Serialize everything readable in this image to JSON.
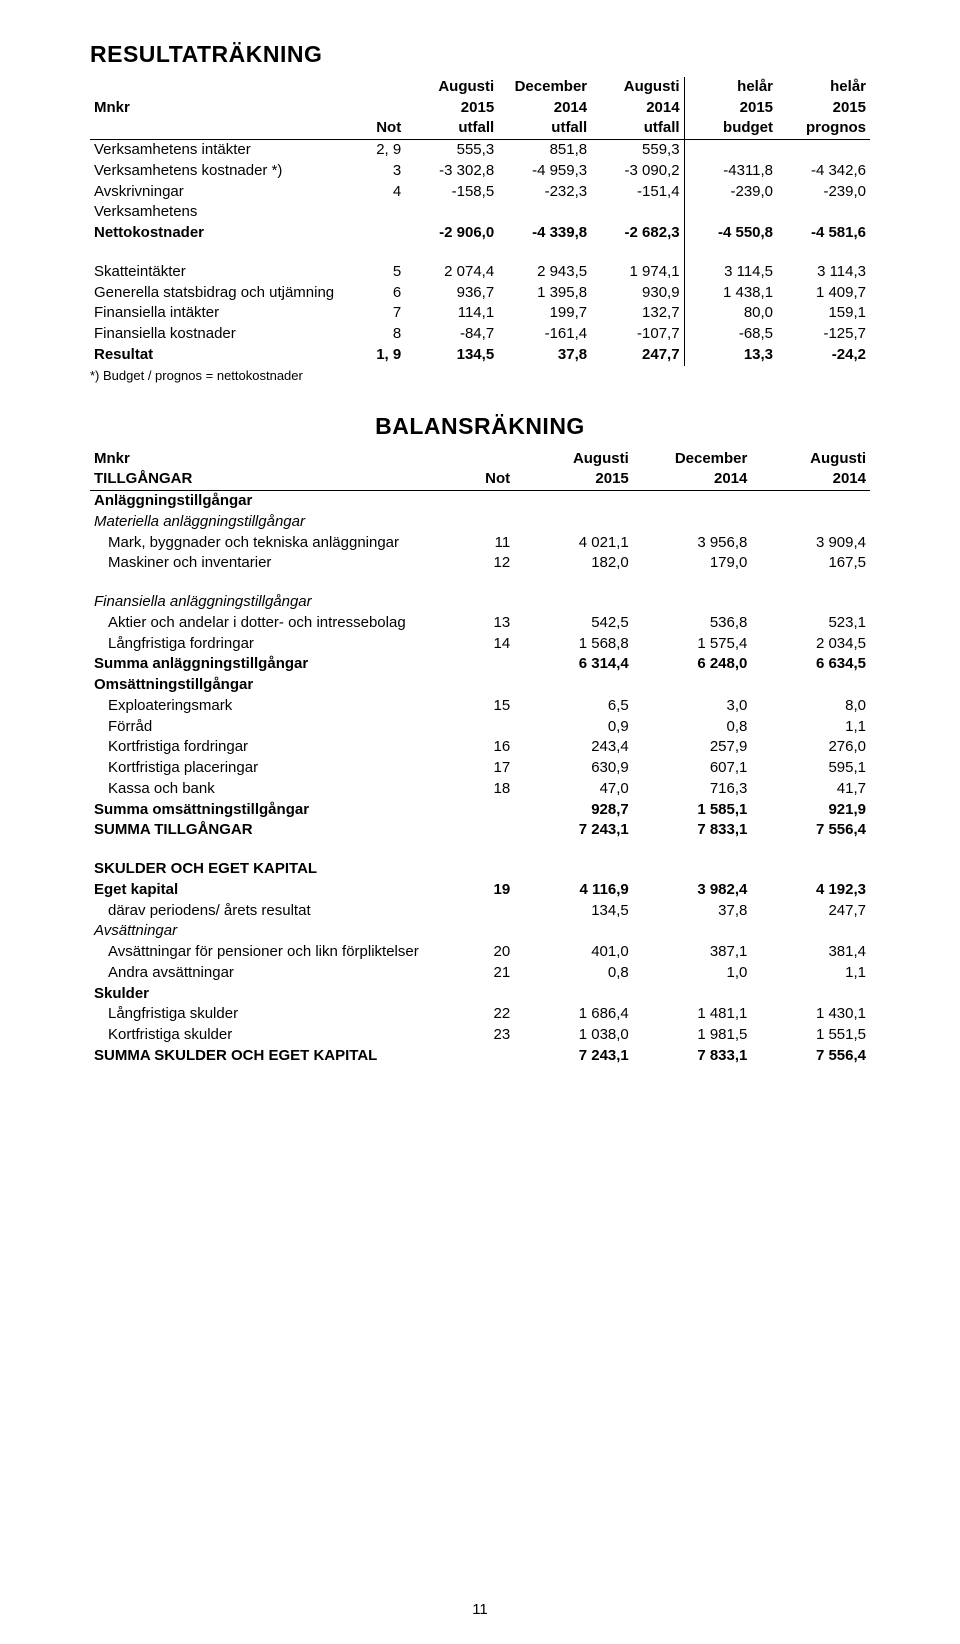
{
  "page_number": "11",
  "result": {
    "title": "RESULTATRÄKNING",
    "header_row1": [
      "",
      "",
      "Augusti",
      "December",
      "Augusti",
      "helår",
      "helår"
    ],
    "header_row2": [
      "Mnkr",
      "",
      "2015",
      "2014",
      "2014",
      "2015",
      "2015"
    ],
    "header_row3": [
      "",
      "Not",
      "utfall",
      "utfall",
      "utfall",
      "budget",
      "prognos"
    ],
    "rows_block1": [
      {
        "label": "Verksamhetens intäkter",
        "note": "2, 9",
        "v": [
          "555,3",
          "851,8",
          "559,3",
          "",
          ""
        ]
      },
      {
        "label": "Verksamhetens kostnader *)",
        "note": "3",
        "v": [
          "-3 302,8",
          "-4 959,3",
          "-3 090,2",
          "-4311,8",
          "-4 342,6"
        ]
      },
      {
        "label": "Avskrivningar",
        "note": "4",
        "v": [
          "-158,5",
          "-232,3",
          "-151,4",
          "-239,0",
          "-239,0"
        ]
      },
      {
        "label": "Verksamhetens",
        "note": "",
        "v": [
          "",
          "",
          "",
          "",
          ""
        ]
      },
      {
        "label": "Nettokostnader",
        "note": "",
        "v": [
          "-2 906,0",
          "-4 339,8",
          "-2 682,3",
          "-4 550,8",
          "-4 581,6"
        ],
        "bold": true
      }
    ],
    "rows_block2": [
      {
        "label": "Skatteintäkter",
        "note": "5",
        "v": [
          "2 074,4",
          "2 943,5",
          "1 974,1",
          "3 114,5",
          "3 114,3"
        ]
      },
      {
        "label": "Generella statsbidrag och utjämning",
        "note": "6",
        "v": [
          "936,7",
          "1 395,8",
          "930,9",
          "1 438,1",
          "1 409,7"
        ]
      },
      {
        "label": "Finansiella intäkter",
        "note": "7",
        "v": [
          "114,1",
          "199,7",
          "132,7",
          "80,0",
          "159,1"
        ]
      },
      {
        "label": "Finansiella kostnader",
        "note": "8",
        "v": [
          "-84,7",
          "-161,4",
          "-107,7",
          "-68,5",
          "-125,7"
        ]
      },
      {
        "label": "Resultat",
        "note": "1, 9",
        "v": [
          "134,5",
          "37,8",
          "247,7",
          "13,3",
          "-24,2"
        ],
        "bold": true
      }
    ],
    "footnote": "*) Budget / prognos = nettokostnader"
  },
  "balance": {
    "title": "BALANSRÄKNING",
    "header_row1": [
      "Mnkr",
      "",
      "Augusti",
      "December",
      "Augusti"
    ],
    "header_row2": [
      "TILLGÅNGAR",
      "Not",
      "2015",
      "2014",
      "2014"
    ],
    "rows": [
      {
        "label": "Anläggningstillgångar",
        "note": "",
        "v": [
          "",
          "",
          ""
        ],
        "bold": true
      },
      {
        "label": "Materiella anläggningstillgångar",
        "note": "",
        "v": [
          "",
          "",
          ""
        ],
        "italic": true
      },
      {
        "label": "Mark, byggnader och tekniska anläggningar",
        "note": "11",
        "v": [
          "4 021,1",
          "3 956,8",
          "3 909,4"
        ],
        "indent": true
      },
      {
        "label": "Maskiner och inventarier",
        "note": "12",
        "v": [
          "182,0",
          "179,0",
          "167,5"
        ],
        "indent": true
      },
      {
        "spacer": true
      },
      {
        "label": "Finansiella anläggningstillgångar",
        "note": "",
        "v": [
          "",
          "",
          ""
        ],
        "italic": true
      },
      {
        "label": "Aktier och andelar i dotter- och intressebolag",
        "note": "13",
        "v": [
          "542,5",
          "536,8",
          "523,1"
        ],
        "indent": true
      },
      {
        "label": "Långfristiga fordringar",
        "note": "14",
        "v": [
          "1 568,8",
          "1 575,4",
          "2 034,5"
        ],
        "indent": true
      },
      {
        "label": "Summa anläggningstillgångar",
        "note": "",
        "v": [
          "6 314,4",
          "6 248,0",
          "6 634,5"
        ],
        "bold": true
      },
      {
        "label": "Omsättningstillgångar",
        "note": "",
        "v": [
          "",
          "",
          ""
        ],
        "bold": true
      },
      {
        "label": "Exploateringsmark",
        "note": "15",
        "v": [
          "6,5",
          "3,0",
          "8,0"
        ],
        "indent": true
      },
      {
        "label": "Förråd",
        "note": "",
        "v": [
          "0,9",
          "0,8",
          "1,1"
        ],
        "indent": true
      },
      {
        "label": "Kortfristiga fordringar",
        "note": "16",
        "v": [
          "243,4",
          "257,9",
          "276,0"
        ],
        "indent": true
      },
      {
        "label": "Kortfristiga placeringar",
        "note": "17",
        "v": [
          "630,9",
          "607,1",
          "595,1"
        ],
        "indent": true
      },
      {
        "label": "Kassa och bank",
        "note": "18",
        "v": [
          "47,0",
          "716,3",
          "41,7"
        ],
        "indent": true
      },
      {
        "label": "Summa omsättningstillgångar",
        "note": "",
        "v": [
          "928,7",
          "1 585,1",
          "921,9"
        ],
        "bold": true
      },
      {
        "label": "SUMMA TILLGÅNGAR",
        "note": "",
        "v": [
          "7 243,1",
          "7 833,1",
          "7 556,4"
        ],
        "bold": true
      },
      {
        "spacer": true
      },
      {
        "label": "SKULDER OCH EGET KAPITAL",
        "note": "",
        "v": [
          "",
          "",
          ""
        ],
        "bold": true
      },
      {
        "label": "Eget kapital",
        "note": "19",
        "v": [
          "4 116,9",
          "3 982,4",
          "4 192,3"
        ],
        "bold": true
      },
      {
        "label": "därav periodens/ årets resultat",
        "note": "",
        "v": [
          "134,5",
          "37,8",
          "247,7"
        ],
        "indent": true
      },
      {
        "label": "Avsättningar",
        "note": "",
        "v": [
          "",
          "",
          ""
        ],
        "italic": true
      },
      {
        "label": "Avsättningar för pensioner och likn förpliktelser",
        "note": "20",
        "v": [
          "401,0",
          "387,1",
          "381,4"
        ],
        "indent": true
      },
      {
        "label": "Andra avsättningar",
        "note": "21",
        "v": [
          "0,8",
          "1,0",
          "1,1"
        ],
        "indent": true
      },
      {
        "label": "Skulder",
        "note": "",
        "v": [
          "",
          "",
          ""
        ],
        "bold": true
      },
      {
        "label": "Långfristiga skulder",
        "note": "22",
        "v": [
          "1 686,4",
          "1 481,1",
          "1 430,1"
        ],
        "indent": true
      },
      {
        "label": "Kortfristiga skulder",
        "note": "23",
        "v": [
          "1 038,0",
          "1 981,5",
          "1 551,5"
        ],
        "indent": true
      },
      {
        "label": "SUMMA SKULDER OCH EGET KAPITAL",
        "note": "",
        "v": [
          "7 243,1",
          "7 833,1",
          "7 556,4"
        ],
        "bold": true
      }
    ]
  }
}
